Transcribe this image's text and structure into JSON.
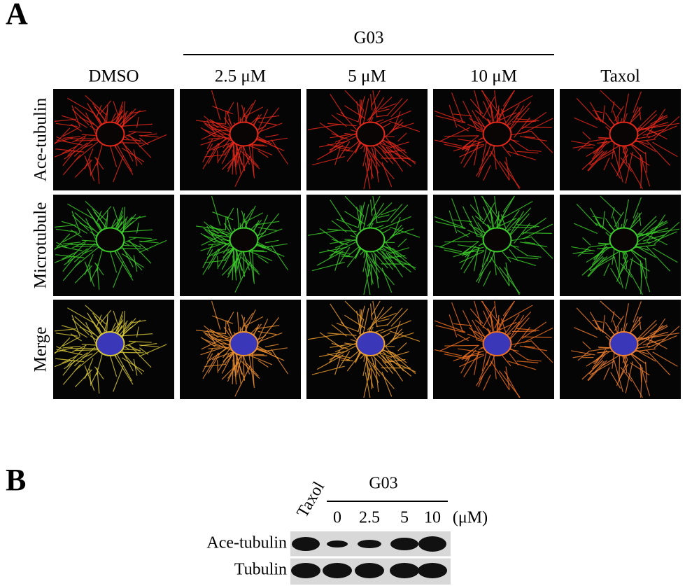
{
  "panel_a": {
    "label": "A",
    "group_label": "G03",
    "columns": [
      "DMSO",
      "2.5 μM",
      "5 μM",
      "10 μM",
      "Taxol"
    ],
    "rows": [
      "Ace-tubulin",
      "Microtubule",
      "Merge"
    ]
  },
  "panel_b": {
    "label": "B",
    "taxol_label": "Taxol",
    "group_label": "G03",
    "doses": [
      "0",
      "2.5",
      "5",
      "10"
    ],
    "unit": "(μM)",
    "rows": [
      "Ace-tubulin",
      "Tubulin"
    ]
  }
}
